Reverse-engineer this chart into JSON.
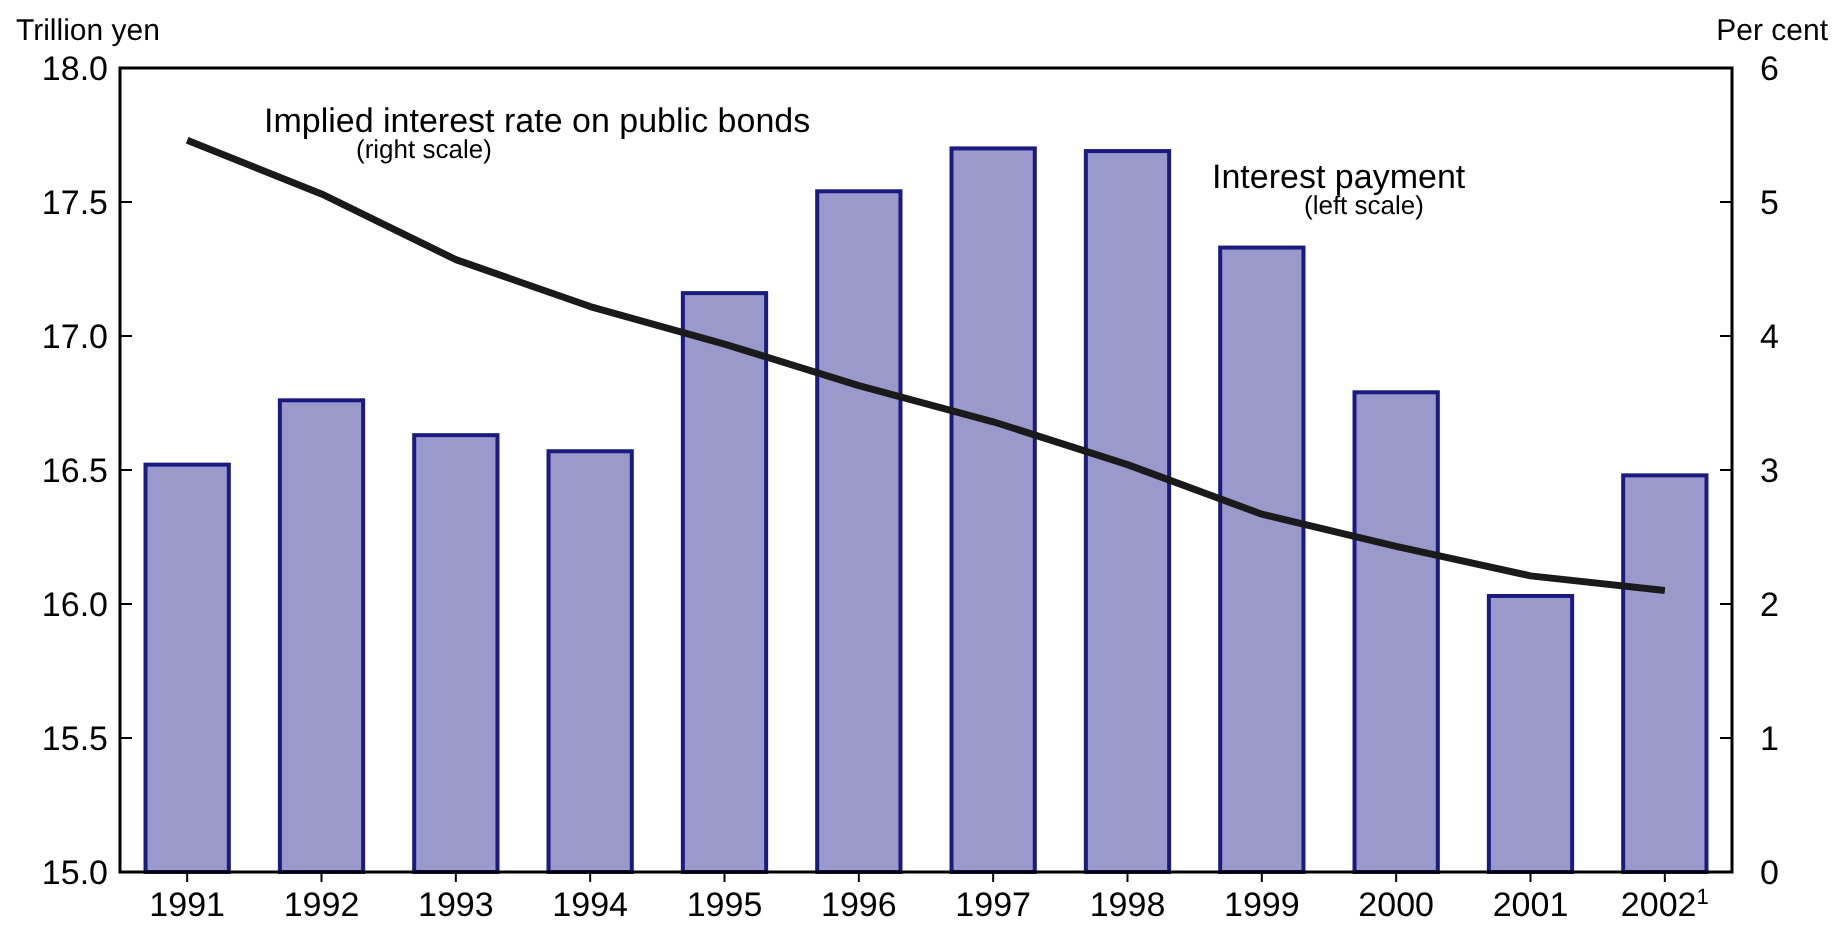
{
  "chart_data": {
    "type": "bar",
    "ylabel": "Trillion yen",
    "y2label": "Per cent",
    "categories": [
      "1991",
      "1992",
      "1993",
      "1994",
      "1995",
      "1996",
      "1997",
      "1998",
      "1999",
      "2000",
      "2001",
      "2002$^{1}$"
    ],
    "series": [
      {
        "name": "Interest payment",
        "color": "#9999cc",
        "values": [
          16.52,
          16.76,
          16.63,
          16.57,
          17.16,
          17.54,
          17.7,
          17.69,
          17.33,
          16.79,
          16.03,
          16.48
        ]
      },
      {
        "name": "Implied interest rate on public bonds",
        "type": "line",
        "axis": "y2",
        "color": "#1a1a1a",
        "values": [
          5.46,
          5.06,
          4.57,
          4.22,
          3.94,
          3.63,
          3.36,
          3.04,
          2.67,
          2.43,
          2.21,
          2.1
        ]
      }
    ],
    "ylim": [
      15,
      18
    ],
    "yticks": [
      {
        "value": 15,
        "label": "15.0"
      },
      {
        "value": 15.5,
        "label": "15.5"
      },
      {
        "value": 16,
        "label": "16.0"
      },
      {
        "value": 16.5,
        "label": "16.5"
      },
      {
        "value": 17,
        "label": "17.0"
      },
      {
        "value": 17.5,
        "label": "17.5"
      },
      {
        "value": 18,
        "label": "18.0"
      }
    ],
    "y2lim": [
      0,
      6
    ],
    "y2ticks": [
      0,
      1,
      2,
      3,
      4,
      5,
      6
    ],
    "annotations": [
      "(left scale)",
      "(right scale)"
    ],
    "grid": false,
    "marker": "none",
    "line_style": "solid"
  }
}
